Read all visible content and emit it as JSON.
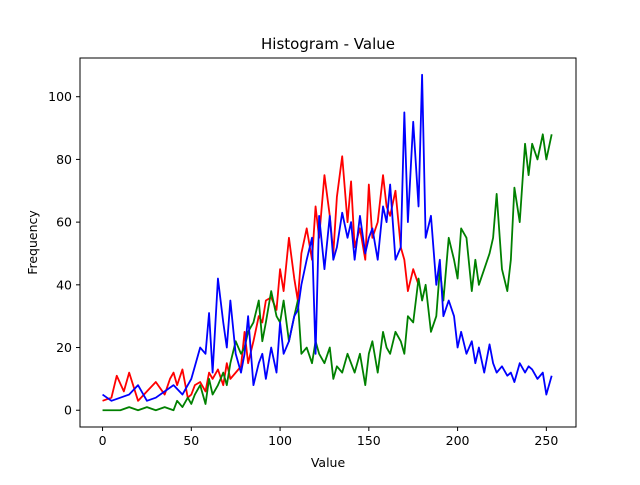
{
  "chart_data": {
    "type": "line",
    "title": "Histogram - Value",
    "xlabel": "Value",
    "ylabel": "Frequency",
    "xlim": [
      -12.7,
      266.7
    ],
    "ylim": [
      -5.35,
      112.35
    ],
    "xticks": [
      0,
      50,
      100,
      150,
      200,
      250
    ],
    "yticks": [
      0,
      20,
      40,
      60,
      80,
      100
    ],
    "grid": false,
    "legend": "none",
    "series": [
      {
        "color": "#ff0000",
        "x": [
          0,
          5,
          8,
          12,
          15,
          20,
          25,
          30,
          35,
          38,
          40,
          42,
          45,
          48,
          50,
          52,
          55,
          58,
          60,
          62,
          65,
          68,
          70,
          72,
          75,
          78,
          80,
          82,
          85,
          88,
          90,
          92,
          95,
          98,
          100,
          102,
          105,
          108,
          110,
          112,
          115,
          118,
          120,
          122,
          125,
          128,
          130,
          132,
          135,
          138,
          140,
          142,
          145,
          148,
          150,
          152,
          155,
          158,
          160,
          162,
          165,
          168,
          170,
          172,
          175,
          178
        ],
        "y": [
          3,
          4,
          11,
          6,
          12,
          3,
          6,
          9,
          5,
          10,
          12,
          8,
          13,
          4,
          5,
          8,
          9,
          6,
          12,
          10,
          13,
          8,
          15,
          10,
          12,
          14,
          25,
          15,
          22,
          30,
          28,
          35,
          36,
          32,
          45,
          38,
          55,
          42,
          35,
          50,
          58,
          48,
          65,
          55,
          75,
          62,
          50,
          68,
          81,
          60,
          73,
          52,
          58,
          48,
          72,
          55,
          60,
          75,
          65,
          62,
          70,
          52,
          48,
          38,
          45,
          40
        ]
      },
      {
        "color": "#008000",
        "x": [
          0,
          5,
          10,
          15,
          20,
          25,
          30,
          35,
          40,
          42,
          45,
          48,
          50,
          52,
          55,
          58,
          60,
          62,
          65,
          68,
          70,
          72,
          75,
          78,
          80,
          82,
          85,
          88,
          90,
          92,
          95,
          98,
          100,
          102,
          105,
          108,
          110,
          112,
          115,
          118,
          120,
          122,
          125,
          128,
          130,
          132,
          135,
          138,
          140,
          142,
          145,
          148,
          150,
          152,
          155,
          158,
          160,
          162,
          165,
          168,
          170,
          172,
          175,
          178,
          180,
          182,
          185,
          188,
          190,
          192,
          195,
          198,
          200,
          202,
          205,
          208,
          210,
          212,
          215,
          218,
          220,
          222,
          225,
          228,
          230,
          232,
          235,
          238,
          240,
          242,
          245,
          248,
          250,
          253
        ],
        "y": [
          0,
          0,
          0,
          1,
          0,
          1,
          0,
          1,
          0,
          3,
          1,
          4,
          2,
          5,
          8,
          2,
          10,
          5,
          8,
          12,
          8,
          15,
          22,
          18,
          20,
          25,
          28,
          35,
          22,
          28,
          38,
          30,
          28,
          35,
          22,
          30,
          35,
          18,
          20,
          15,
          22,
          18,
          15,
          20,
          10,
          14,
          12,
          18,
          15,
          12,
          18,
          8,
          18,
          22,
          12,
          25,
          20,
          18,
          25,
          22,
          18,
          30,
          28,
          42,
          35,
          40,
          25,
          30,
          45,
          35,
          55,
          48,
          42,
          58,
          55,
          38,
          48,
          40,
          45,
          50,
          55,
          69,
          45,
          38,
          48,
          71,
          60,
          85,
          75,
          85,
          80,
          88,
          80,
          88
        ]
      },
      {
        "color": "#0000ff",
        "x": [
          0,
          5,
          10,
          15,
          20,
          25,
          30,
          35,
          40,
          45,
          50,
          52,
          55,
          58,
          60,
          62,
          65,
          68,
          70,
          72,
          75,
          78,
          80,
          82,
          85,
          88,
          90,
          92,
          95,
          98,
          100,
          102,
          105,
          108,
          110,
          112,
          115,
          118,
          120,
          122,
          125,
          128,
          130,
          132,
          135,
          138,
          140,
          142,
          145,
          148,
          150,
          152,
          155,
          158,
          160,
          162,
          165,
          168,
          170,
          172,
          175,
          178,
          180,
          182,
          185,
          188,
          190,
          192,
          195,
          198,
          200,
          202,
          205,
          208,
          210,
          212,
          215,
          218,
          220,
          222,
          225,
          228,
          230,
          232,
          235,
          238,
          240,
          242,
          245,
          248,
          250,
          253
        ],
        "y": [
          5,
          3,
          4,
          5,
          8,
          3,
          4,
          6,
          8,
          5,
          10,
          14,
          20,
          18,
          31,
          12,
          42,
          28,
          20,
          35,
          18,
          12,
          18,
          30,
          8,
          15,
          18,
          10,
          20,
          12,
          28,
          18,
          22,
          30,
          32,
          40,
          48,
          55,
          18,
          62,
          45,
          62,
          48,
          52,
          63,
          55,
          60,
          48,
          62,
          50,
          55,
          58,
          48,
          65,
          60,
          72,
          48,
          52,
          95,
          60,
          92,
          65,
          107,
          55,
          62,
          40,
          48,
          30,
          35,
          30,
          20,
          25,
          18,
          22,
          15,
          20,
          12,
          21,
          15,
          12,
          14,
          11,
          12,
          9,
          15,
          12,
          14,
          13,
          10,
          12,
          5,
          11
        ]
      }
    ]
  }
}
